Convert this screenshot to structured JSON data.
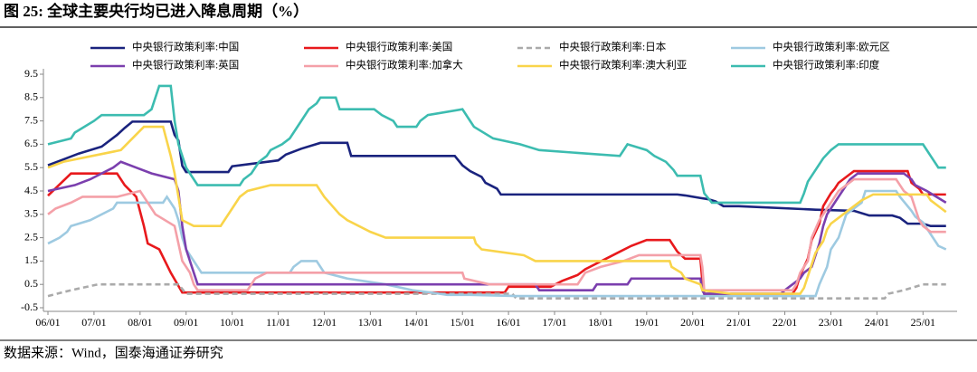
{
  "chart_data": {
    "type": "line",
    "title": "图 25:  全球主要央行均已进入降息周期（%）",
    "source": "数据来源：Wind，国泰海通证券研究",
    "xlim": [
      0,
      235
    ],
    "xticks": [
      {
        "value": 0,
        "label": "06/01"
      },
      {
        "value": 12,
        "label": "07/01"
      },
      {
        "value": 24,
        "label": "08/01"
      },
      {
        "value": 36,
        "label": "09/01"
      },
      {
        "value": 48,
        "label": "10/01"
      },
      {
        "value": 60,
        "label": "11/01"
      },
      {
        "value": 72,
        "label": "12/01"
      },
      {
        "value": 84,
        "label": "13/01"
      },
      {
        "value": 96,
        "label": "14/01"
      },
      {
        "value": 108,
        "label": "15/01"
      },
      {
        "value": 120,
        "label": "16/01"
      },
      {
        "value": 132,
        "label": "17/01"
      },
      {
        "value": 144,
        "label": "18/01"
      },
      {
        "value": 156,
        "label": "19/01"
      },
      {
        "value": 168,
        "label": "20/01"
      },
      {
        "value": 180,
        "label": "21/01"
      },
      {
        "value": 192,
        "label": "22/01"
      },
      {
        "value": 204,
        "label": "23/01"
      },
      {
        "value": 216,
        "label": "24/01"
      },
      {
        "value": 228,
        "label": "25/01"
      }
    ],
    "ylim": [
      -0.5,
      9.5
    ],
    "yticks": [
      9.5,
      8.5,
      7.5,
      6.5,
      5.5,
      4.5,
      3.5,
      2.5,
      1.5,
      0.5,
      -0.5
    ],
    "grid": false,
    "legend": "top",
    "series": [
      {
        "name": "中央银行政策利率:中国",
        "color": "#1a237e",
        "line_style": "solid",
        "x": [
          0,
          4,
          8,
          14,
          18,
          20,
          22,
          32,
          33,
          34,
          35,
          36,
          47,
          48,
          60,
          62,
          66,
          71,
          78,
          79,
          106,
          108,
          110,
          113,
          114,
          117,
          118,
          164,
          166,
          170,
          172,
          174,
          176,
          180,
          200,
          210,
          214,
          220,
          222,
          224,
          228,
          230,
          234
        ],
        "values": [
          5.6,
          5.85,
          6.1,
          6.4,
          6.9,
          7.2,
          7.47,
          7.47,
          6.9,
          6.66,
          5.58,
          5.31,
          5.31,
          5.56,
          5.81,
          6.06,
          6.31,
          6.56,
          6.56,
          6.0,
          6.0,
          5.6,
          5.35,
          5.1,
          4.85,
          4.6,
          4.35,
          4.35,
          4.31,
          4.2,
          4.15,
          4.05,
          3.85,
          3.85,
          3.7,
          3.65,
          3.45,
          3.45,
          3.35,
          3.1,
          3.1,
          3.0,
          3.0
        ]
      },
      {
        "name": "中央银行政策利率:美国",
        "color": "#e8191c",
        "line_style": "solid",
        "x": [
          0,
          6,
          18,
          20,
          23,
          25,
          26,
          29,
          32,
          35,
          119,
          120,
          131,
          134,
          138,
          140,
          143,
          146,
          149,
          152,
          156,
          162,
          163,
          164,
          166,
          170,
          170.5,
          171,
          194,
          195,
          196,
          198,
          199,
          201,
          202,
          204,
          205,
          206,
          208,
          210,
          224,
          225,
          227,
          228,
          234
        ],
        "values": [
          4.3,
          5.25,
          5.25,
          4.75,
          4.25,
          3.0,
          2.25,
          2.0,
          1.0,
          0.15,
          0.15,
          0.4,
          0.4,
          0.65,
          0.9,
          1.15,
          1.4,
          1.65,
          1.9,
          2.15,
          2.4,
          2.4,
          2.15,
          1.9,
          1.6,
          1.6,
          0.65,
          0.1,
          0.1,
          0.35,
          0.9,
          1.6,
          2.4,
          3.1,
          3.85,
          4.4,
          4.6,
          4.85,
          5.1,
          5.35,
          5.35,
          4.85,
          4.6,
          4.35,
          4.35
        ]
      },
      {
        "name": "中央银行政策利率:日本",
        "color": "#aaaaaa",
        "line_style": "dashed",
        "x": [
          0,
          6,
          13,
          34,
          35,
          36,
          121,
          122,
          218,
          219,
          223,
          228,
          234
        ],
        "values": [
          0.0,
          0.25,
          0.5,
          0.5,
          0.3,
          0.1,
          0.1,
          -0.1,
          -0.1,
          0.1,
          0.25,
          0.5,
          0.5
        ]
      },
      {
        "name": "中央银行政策利率:欧元区",
        "color": "#9ecae1",
        "line_style": "solid",
        "x": [
          0,
          3,
          5,
          6,
          11,
          17,
          18,
          30,
          31,
          33,
          34,
          35,
          36,
          38,
          40,
          63,
          64,
          66,
          70,
          71,
          72,
          78,
          88,
          95,
          100,
          104,
          110,
          122,
          200,
          201,
          203,
          204,
          206,
          207,
          208,
          210,
          212,
          213,
          221,
          222,
          225,
          226,
          228,
          230,
          232,
          234
        ],
        "values": [
          2.25,
          2.5,
          2.75,
          3.0,
          3.25,
          3.75,
          4.0,
          4.0,
          4.25,
          3.75,
          3.25,
          2.5,
          2.0,
          1.5,
          1.0,
          1.0,
          1.25,
          1.5,
          1.5,
          1.25,
          1.0,
          0.75,
          0.5,
          0.25,
          0.15,
          0.05,
          0.05,
          0.0,
          0.0,
          0.5,
          1.25,
          2.0,
          2.5,
          3.0,
          3.5,
          3.75,
          4.0,
          4.5,
          4.5,
          4.25,
          3.65,
          3.4,
          3.15,
          2.65,
          2.15,
          2.0
        ]
      },
      {
        "name": "中央银行政策利率:英国",
        "color": "#7b3fae",
        "line_style": "solid",
        "x": [
          0,
          7,
          11,
          17,
          19,
          23,
          27,
          33,
          34,
          35,
          36,
          37,
          38,
          39,
          127,
          128,
          142,
          143,
          151,
          152,
          170,
          170.5,
          171,
          191,
          192,
          194,
          196,
          197,
          199,
          200,
          201,
          202,
          203,
          205,
          206,
          207,
          209,
          211,
          223,
          225,
          226,
          229,
          234
        ],
        "values": [
          4.5,
          4.75,
          5.0,
          5.5,
          5.75,
          5.5,
          5.25,
          5.0,
          4.5,
          3.0,
          2.0,
          1.5,
          1.0,
          0.5,
          0.5,
          0.25,
          0.25,
          0.5,
          0.5,
          0.75,
          0.75,
          0.25,
          0.1,
          0.1,
          0.25,
          0.5,
          0.75,
          1.0,
          1.25,
          1.75,
          2.25,
          3.0,
          3.5,
          4.0,
          4.25,
          4.5,
          5.0,
          5.25,
          5.25,
          5.0,
          4.75,
          4.5,
          4.0
        ]
      },
      {
        "name": "中央银行政策利率:加拿大",
        "color": "#f4a0a8",
        "line_style": "solid",
        "x": [
          0,
          2,
          6,
          9,
          18,
          24,
          25,
          26,
          28,
          33,
          34,
          35,
          37,
          38,
          39,
          52,
          53,
          54,
          57,
          108,
          108.5,
          115,
          138,
          139,
          140,
          144,
          150,
          154,
          170,
          170.5,
          171,
          194,
          195,
          196,
          198,
          199,
          201,
          203,
          205,
          206,
          210,
          221,
          222,
          223,
          225,
          226,
          227,
          228,
          230,
          234
        ],
        "values": [
          3.5,
          3.75,
          4.0,
          4.25,
          4.25,
          4.5,
          4.25,
          4.0,
          3.5,
          3.0,
          2.25,
          1.5,
          1.0,
          0.5,
          0.25,
          0.25,
          0.5,
          0.75,
          1.0,
          1.0,
          0.75,
          0.5,
          0.5,
          0.75,
          1.0,
          1.25,
          1.5,
          1.75,
          1.75,
          1.25,
          0.25,
          0.25,
          0.5,
          1.0,
          1.5,
          2.5,
          3.25,
          3.75,
          4.25,
          4.5,
          5.0,
          5.0,
          4.75,
          4.5,
          4.25,
          3.75,
          3.25,
          3.0,
          2.75,
          2.75
        ]
      },
      {
        "name": "中央银行政策利率:澳大利亚",
        "color": "#f9d44a",
        "line_style": "solid",
        "x": [
          0,
          4,
          19,
          25,
          30,
          32,
          33,
          34,
          35,
          38,
          45,
          46,
          48,
          50,
          52,
          58,
          70,
          71,
          72,
          76,
          78,
          84,
          88,
          111,
          111.5,
          113,
          124,
          127,
          162,
          162.5,
          165,
          166,
          170,
          170.5,
          178,
          196,
          197,
          198,
          200,
          202,
          203,
          204,
          206,
          208,
          212,
          215,
          229,
          230,
          232,
          234
        ],
        "values": [
          5.5,
          5.75,
          6.25,
          7.25,
          7.25,
          6.0,
          5.25,
          4.25,
          3.25,
          3.0,
          3.0,
          3.25,
          3.75,
          4.25,
          4.5,
          4.75,
          4.75,
          4.5,
          4.25,
          3.5,
          3.25,
          2.75,
          2.5,
          2.5,
          2.25,
          2.0,
          1.75,
          1.5,
          1.5,
          1.25,
          1.0,
          0.75,
          0.5,
          0.25,
          0.1,
          0.1,
          0.35,
          0.85,
          1.85,
          2.35,
          2.85,
          3.1,
          3.35,
          3.6,
          4.1,
          4.35,
          4.35,
          4.1,
          3.85,
          3.6
        ]
      },
      {
        "name": "中央银行政策利率:印度",
        "color": "#3cbcb0",
        "line_style": "solid",
        "x": [
          0,
          6,
          7,
          12,
          14,
          25,
          27,
          29,
          32,
          33,
          34,
          36,
          38,
          39,
          50,
          51,
          53,
          54,
          55,
          57,
          58,
          61,
          63,
          66,
          68,
          70,
          71,
          75,
          76,
          85,
          87,
          90,
          91,
          96,
          97,
          99,
          108,
          109,
          110,
          111,
          116,
          123,
          128,
          149,
          150,
          151,
          156,
          158,
          161,
          163,
          164,
          170,
          171,
          173,
          196,
          197,
          198,
          200,
          202,
          204,
          206,
          228,
          229,
          230,
          232,
          234
        ],
        "values": [
          6.5,
          6.75,
          7.0,
          7.5,
          7.75,
          7.75,
          8.0,
          9.0,
          9.0,
          7.5,
          6.5,
          5.5,
          5.0,
          4.75,
          4.75,
          5.0,
          5.25,
          5.5,
          5.75,
          6.0,
          6.25,
          6.5,
          6.75,
          7.5,
          8.0,
          8.25,
          8.5,
          8.5,
          8.0,
          8.0,
          7.75,
          7.5,
          7.25,
          7.25,
          7.5,
          7.75,
          8.0,
          7.75,
          7.5,
          7.25,
          6.75,
          6.5,
          6.25,
          6.0,
          6.25,
          6.5,
          6.25,
          6.0,
          5.75,
          5.4,
          5.15,
          5.15,
          4.4,
          4.0,
          4.0,
          4.4,
          4.9,
          5.4,
          5.9,
          6.25,
          6.5,
          6.5,
          6.25,
          6.0,
          5.5,
          5.5
        ]
      }
    ]
  }
}
